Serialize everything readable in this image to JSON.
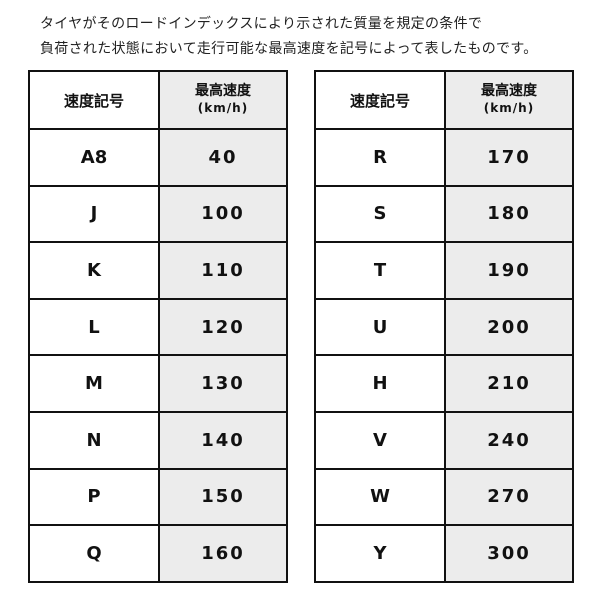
{
  "intro": {
    "line1": "タイヤがそのロードインデックスにより示された質量を規定の条件で",
    "line2": "負荷された状態において走行可能な最高速度を記号によって表したものです。"
  },
  "headers": {
    "symbol": "速度記号",
    "speed": "最高速度",
    "unit": "(km/h)"
  },
  "left_rows": [
    {
      "symbol": "A8",
      "speed": "40"
    },
    {
      "symbol": "J",
      "speed": "100"
    },
    {
      "symbol": "K",
      "speed": "110"
    },
    {
      "symbol": "L",
      "speed": "120"
    },
    {
      "symbol": "M",
      "speed": "130"
    },
    {
      "symbol": "N",
      "speed": "140"
    },
    {
      "symbol": "P",
      "speed": "150"
    },
    {
      "symbol": "Q",
      "speed": "160"
    }
  ],
  "right_rows": [
    {
      "symbol": "R",
      "speed": "170"
    },
    {
      "symbol": "S",
      "speed": "180"
    },
    {
      "symbol": "T",
      "speed": "190"
    },
    {
      "symbol": "U",
      "speed": "200"
    },
    {
      "symbol": "H",
      "speed": "210"
    },
    {
      "symbol": "V",
      "speed": "240"
    },
    {
      "symbol": "W",
      "speed": "270"
    },
    {
      "symbol": "Y",
      "speed": "300"
    }
  ],
  "colors": {
    "shaded_column": "#ececec",
    "border": "#111111"
  }
}
